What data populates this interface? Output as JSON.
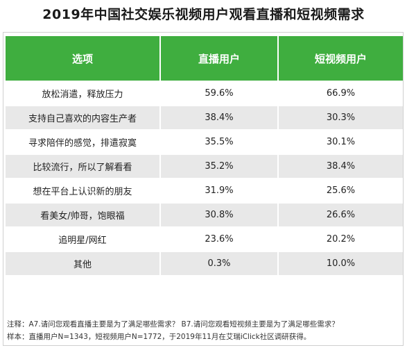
{
  "title": "2019年中国社交娱乐视频用户观看直播和短视频需求",
  "chart_data": {
    "type": "table",
    "title": "2019年中国社交娱乐视频用户观看直播和短视频需求",
    "columns": [
      "选项",
      "直播用户",
      "短视频用户"
    ],
    "rows": [
      {
        "option": "放松消遣，释放压力",
        "live": "59.6%",
        "short": "66.9%"
      },
      {
        "option": "支持自己喜欢的内容生产者",
        "live": "38.4%",
        "short": "30.3%"
      },
      {
        "option": "寻求陪伴的感觉，排遣寂寞",
        "live": "35.5%",
        "short": "30.1%"
      },
      {
        "option": "比较流行，所以了解看看",
        "live": "35.2%",
        "short": "38.4%"
      },
      {
        "option": "想在平台上认识新的朋友",
        "live": "31.9%",
        "short": "25.6%"
      },
      {
        "option": "看美女/帅哥，饱眼福",
        "live": "30.8%",
        "short": "26.6%"
      },
      {
        "option": "追明星/网红",
        "live": "23.6%",
        "short": "20.2%"
      },
      {
        "option": "其他",
        "live": "0.3%",
        "short": "10.0%"
      }
    ]
  },
  "notes": {
    "note": "注释：A7.请问您观看直播主要是为了满足哪些需求？ B7.请问您观看短视频主要是为了满足哪些需求？",
    "sample": "样本：直播用户N=1343，短视频用户N=1772，于2019年11月在艾瑞iClick社区调研获得。"
  },
  "colors": {
    "header_bg": "#3fae3f",
    "header_text": "#ffffff",
    "row_alt_bg": "#e8e8e8"
  }
}
